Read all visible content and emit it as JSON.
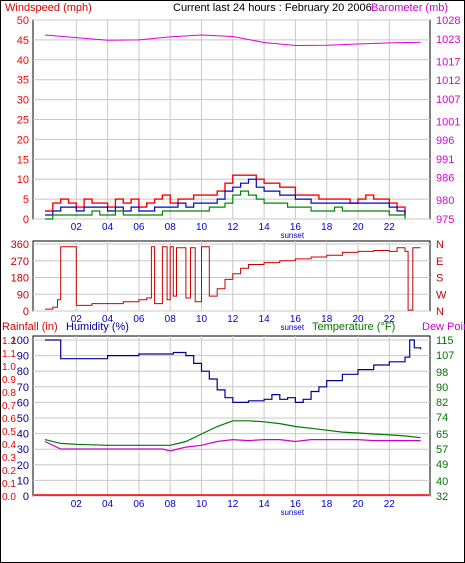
{
  "colors": {
    "wind_red": "#ff0000",
    "gust_red": "#dd0000",
    "avg_blue": "#0000cc",
    "avg_green": "#008800",
    "baro_magenta": "#dd00dd",
    "dir_red": "#cc0000",
    "humidity_blue": "#000099",
    "rain_red": "#ee0000",
    "temp_green": "#007700",
    "dew_magenta": "#cc00cc",
    "grid_gray": "#c8c8c8",
    "text_dark": "#000000"
  },
  "chart_data": [
    {
      "type": "line",
      "title": "Current last 24 hours : February 20 2006",
      "ylabel": "Windspeed (mph)",
      "y2label": "Barometer (mb)",
      "ylim": [
        0,
        50
      ],
      "y_ticks": [
        "0",
        "5",
        "10",
        "15",
        "20",
        "25",
        "30",
        "35",
        "40",
        "45",
        "50"
      ],
      "y2lim": [
        975,
        1028
      ],
      "y2_ticks": [
        "975",
        "980",
        "986",
        "991",
        "996",
        "1001",
        "1007",
        "1012",
        "1017",
        "1023",
        "1028"
      ],
      "x_ticks": [
        "02",
        "04",
        "06",
        "08",
        "10",
        "12",
        "14",
        "16",
        "18",
        "20",
        "22"
      ],
      "x_marker": "sunset",
      "grid": true,
      "series": [
        {
          "role": "gust",
          "x": [
            0,
            0.5,
            1,
            1.5,
            2,
            2.5,
            3,
            3.5,
            4,
            4.5,
            5,
            5.5,
            6,
            6.5,
            7,
            7.5,
            8,
            8.5,
            9,
            9.5,
            10,
            10.5,
            11,
            11.5,
            12,
            12.5,
            13,
            13.5,
            14,
            14.5,
            15,
            15.5,
            16,
            16.5,
            17,
            17.5,
            18,
            18.5,
            19,
            19.5,
            20,
            20.5,
            21,
            21.5,
            22,
            22.5,
            23
          ],
          "values": [
            2,
            4,
            5,
            4,
            3,
            5,
            4,
            4,
            3,
            5,
            4,
            5,
            3,
            4,
            5,
            6,
            4,
            5,
            5,
            6,
            6,
            6,
            7,
            9,
            11,
            11,
            11,
            10,
            9,
            9,
            8,
            8,
            6,
            6,
            6,
            5,
            5,
            5,
            5,
            4,
            5,
            6,
            5,
            5,
            4,
            3,
            1
          ]
        },
        {
          "role": "average",
          "x": [
            0,
            0.5,
            1,
            1.5,
            2,
            2.5,
            3,
            3.5,
            4,
            4.5,
            5,
            5.5,
            6,
            6.5,
            7,
            7.5,
            8,
            8.5,
            9,
            9.5,
            10,
            10.5,
            11,
            11.5,
            12,
            12.5,
            13,
            13.5,
            14,
            14.5,
            15,
            15.5,
            16,
            16.5,
            17,
            17.5,
            18,
            18.5,
            19,
            19.5,
            20,
            20.5,
            21,
            21.5,
            22,
            22.5,
            23
          ],
          "values": [
            1,
            2,
            3,
            3,
            2,
            3,
            3,
            3,
            2,
            3,
            2,
            3,
            2,
            2,
            3,
            3,
            3,
            4,
            3,
            4,
            4,
            4,
            5,
            7,
            8,
            9,
            10,
            8,
            7,
            7,
            6,
            6,
            5,
            5,
            4,
            4,
            4,
            4,
            4,
            4,
            4,
            4,
            4,
            4,
            3,
            2,
            1
          ]
        },
        {
          "role": "minimum",
          "x": [
            0,
            0.5,
            1,
            1.5,
            2,
            2.5,
            3,
            3.5,
            4,
            4.5,
            5,
            5.5,
            6,
            6.5,
            7,
            7.5,
            8,
            8.5,
            9,
            9.5,
            10,
            10.5,
            11,
            11.5,
            12,
            12.5,
            13,
            13.5,
            14,
            14.5,
            15,
            15.5,
            16,
            16.5,
            17,
            17.5,
            18,
            18.5,
            19,
            19.5,
            20,
            20.5,
            21,
            21.5,
            22,
            22.5,
            23
          ],
          "values": [
            0,
            1,
            1,
            1,
            1,
            1,
            2,
            1,
            1,
            2,
            1,
            1,
            1,
            1,
            1,
            2,
            2,
            2,
            2,
            2,
            2,
            3,
            3,
            4,
            6,
            7,
            6,
            5,
            4,
            4,
            4,
            3,
            3,
            3,
            2,
            2,
            2,
            3,
            2,
            2,
            2,
            2,
            2,
            2,
            1,
            1,
            0
          ]
        },
        {
          "role": "barometer",
          "axis": "right",
          "x": [
            0,
            2,
            4,
            6,
            8,
            10,
            12,
            14,
            16,
            18,
            20,
            22,
            24
          ],
          "values": [
            1024,
            1023.3,
            1022.6,
            1022.7,
            1023.5,
            1024,
            1023.6,
            1022,
            1021.2,
            1021.3,
            1021.6,
            1021.9,
            1022.1
          ]
        }
      ]
    },
    {
      "type": "line",
      "y_ticks": [
        "0",
        "90",
        "180",
        "270",
        "360"
      ],
      "ylim": [
        0,
        360
      ],
      "y2_ticks": [
        "N",
        "W",
        "S",
        "E",
        "N"
      ],
      "x_ticks": [
        "02",
        "04",
        "06",
        "08",
        "10",
        "12",
        "14",
        "16",
        "18",
        "20",
        "22"
      ],
      "x_marker": "sunset",
      "grid": true,
      "series": [
        {
          "role": "wind_direction",
          "x": [
            0,
            0.5,
            0.8,
            1,
            2,
            3,
            4,
            5,
            6,
            6.5,
            6.8,
            7,
            7.5,
            7.8,
            8,
            8.2,
            8.4,
            9,
            9.3,
            9.6,
            10,
            10.5,
            11,
            11.5,
            12,
            12.5,
            13,
            14,
            15,
            16,
            17,
            18,
            19,
            20,
            21,
            22,
            22.5,
            23,
            23.2,
            23.5,
            24
          ],
          "values": [
            10,
            20,
            60,
            345,
            30,
            40,
            40,
            50,
            60,
            70,
            345,
            40,
            345,
            60,
            345,
            80,
            340,
            70,
            340,
            50,
            345,
            80,
            120,
            170,
            200,
            230,
            250,
            260,
            270,
            280,
            290,
            300,
            315,
            320,
            325,
            320,
            340,
            320,
            5,
            340,
            340
          ]
        }
      ]
    },
    {
      "type": "line",
      "ylabel": "Rainfall (in)",
      "ylabel2": "Humidity (%)",
      "y2label": "Temperature (°F)",
      "y2label2": "Dew Point",
      "rain_ticks": [
        "0.0",
        "0.1",
        "0.2",
        "0.3",
        "0.4",
        "0.5",
        "0.6",
        "0.7",
        "0.8",
        "0.9",
        "1.0",
        "1.1",
        "1.2"
      ],
      "humidity_ticks": [
        "0",
        "10",
        "20",
        "30",
        "40",
        "50",
        "60",
        "70",
        "80",
        "90",
        "100"
      ],
      "ylim": [
        0,
        100
      ],
      "y2lim": [
        32,
        115
      ],
      "y2_ticks": [
        "32",
        "40",
        "49",
        "57",
        "65",
        "74",
        "82",
        "90",
        "98",
        "107",
        "115"
      ],
      "x_ticks": [
        "02",
        "04",
        "06",
        "08",
        "10",
        "12",
        "14",
        "16",
        "18",
        "20",
        "22"
      ],
      "x_marker": "sunset",
      "grid": true,
      "series": [
        {
          "role": "humidity",
          "axis": "humidity",
          "x": [
            0,
            0.5,
            1,
            2,
            4,
            6,
            7.5,
            8.2,
            9,
            9.5,
            10,
            10.5,
            11,
            11.5,
            12,
            13,
            14,
            14.5,
            15,
            15.5,
            16,
            16.5,
            17,
            17.5,
            18,
            19,
            20,
            21,
            22,
            23,
            23.3,
            23.6,
            24
          ],
          "values": [
            100,
            100,
            88,
            88,
            90,
            91,
            91,
            92,
            90,
            85,
            80,
            75,
            68,
            63,
            60,
            61,
            62,
            65,
            62,
            63,
            60,
            62,
            67,
            70,
            74,
            78,
            81,
            84,
            86,
            89,
            100,
            95,
            94
          ]
        },
        {
          "role": "rainfall",
          "axis": "rain",
          "x": [
            0,
            24
          ],
          "values": [
            0,
            0
          ]
        },
        {
          "role": "temperature",
          "axis": "right",
          "x": [
            0,
            1,
            2,
            4,
            6,
            8,
            9,
            10,
            11,
            12,
            13,
            14,
            15,
            16,
            17,
            18,
            19,
            20,
            21,
            22,
            23,
            24
          ],
          "values": [
            62,
            60,
            59.5,
            59,
            59,
            59,
            61,
            65,
            69,
            72,
            72,
            71.5,
            70.5,
            69,
            68,
            67,
            66,
            65.5,
            65,
            64.5,
            64,
            63
          ]
        },
        {
          "role": "dewpoint",
          "axis": "right",
          "x": [
            0,
            1,
            2,
            4,
            6,
            7.5,
            8,
            8.5,
            9,
            10,
            11,
            12,
            13,
            14,
            15,
            16,
            17,
            18,
            19,
            20,
            21,
            22,
            23,
            24
          ],
          "values": [
            61,
            57,
            57,
            57,
            57,
            57,
            56,
            57,
            58,
            59,
            61,
            62,
            61.5,
            62,
            62,
            61,
            62,
            62,
            62,
            62,
            61.5,
            61.5,
            61.5,
            61.5
          ]
        }
      ]
    }
  ]
}
